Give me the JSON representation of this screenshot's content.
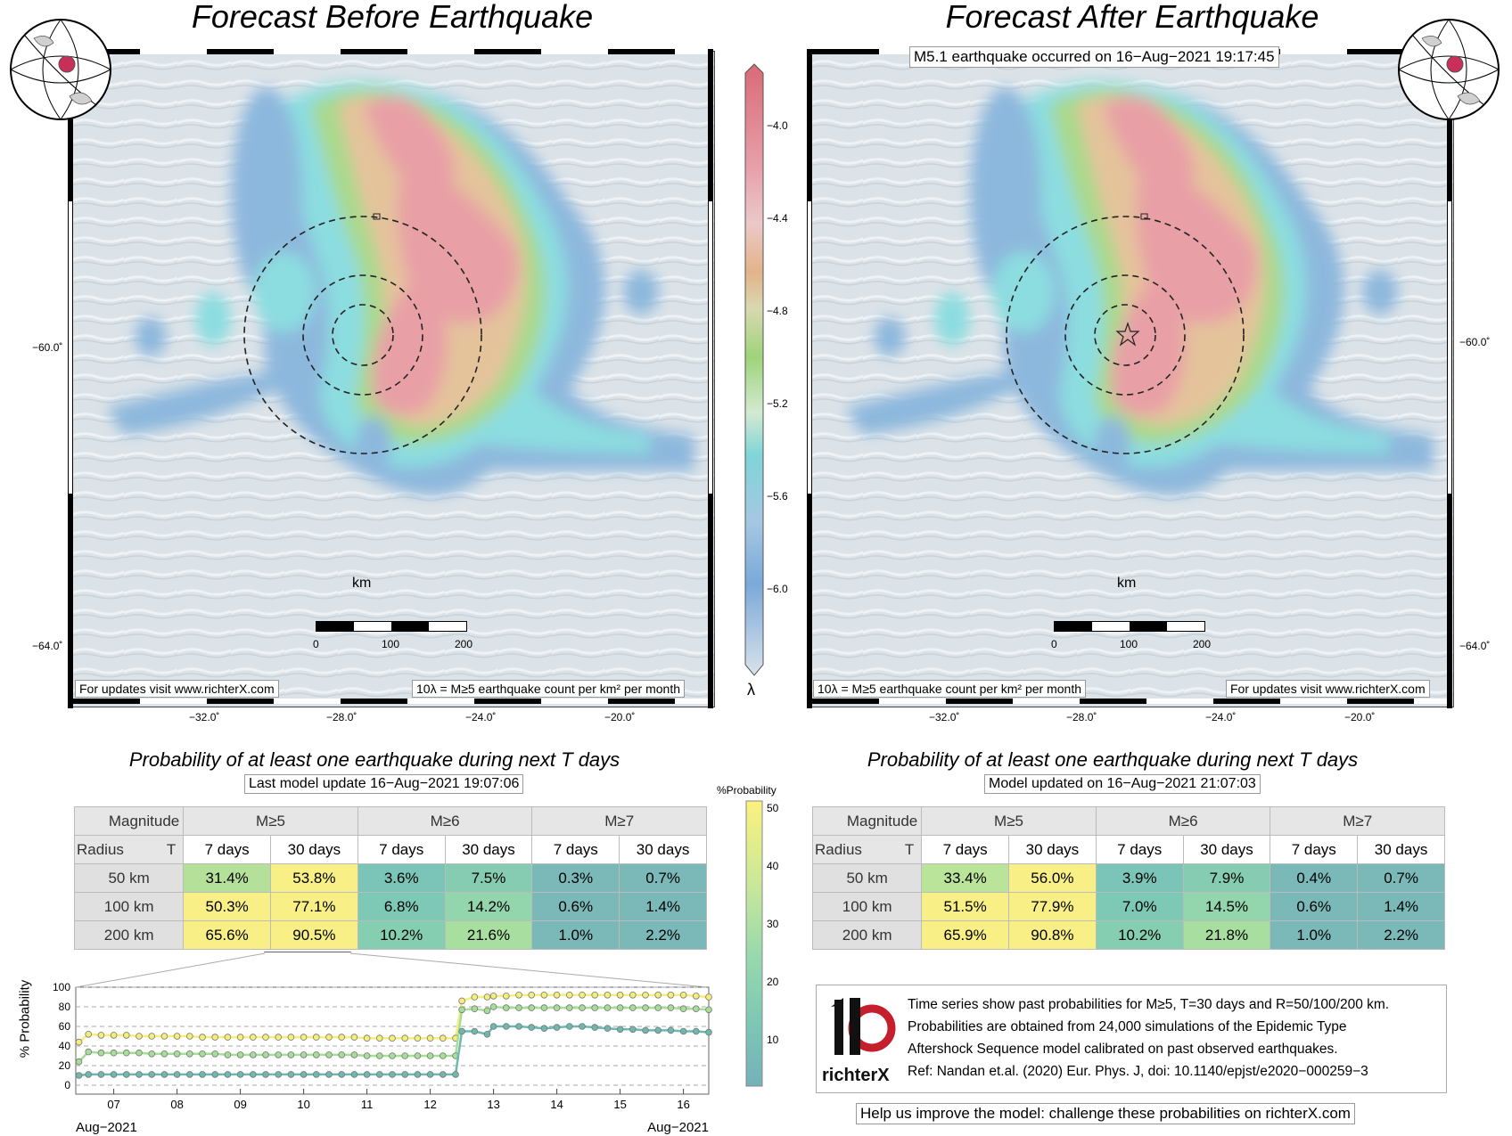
{
  "left_panel": {
    "title": "Forecast Before Earthquake",
    "footer_left": "For updates visit www.richterX.com",
    "footer_right": "10λ = M≥5 earthquake count per km² per month",
    "scale": {
      "unit": "km",
      "ticks": [
        "0",
        "100",
        "200"
      ]
    },
    "lat_ticks": [
      "−60.0˚",
      "−64.0˚"
    ],
    "lon_ticks": [
      "−32.0˚",
      "−28.0˚",
      "−24.0˚",
      "−20.0˚"
    ]
  },
  "right_panel": {
    "title": "Forecast After Earthquake",
    "event_note": "M5.1 earthquake occurred on 16−Aug−2021 19:17:45",
    "footer_left": "10λ = M≥5 earthquake count per km² per month",
    "footer_right": "For updates visit www.richterX.com",
    "scale": {
      "unit": "km",
      "ticks": [
        "0",
        "100",
        "200"
      ]
    },
    "lat_ticks": [
      "−60.0˚",
      "−64.0˚"
    ],
    "lon_ticks": [
      "−32.0˚",
      "−28.0˚",
      "−24.0˚",
      "−20.0˚"
    ]
  },
  "colorbar_lambda": {
    "label": "λ",
    "ticks": [
      "−4.0",
      "−4.4",
      "−4.8",
      "−5.2",
      "−5.6",
      "−6.0"
    ]
  },
  "colorbar_prob": {
    "label": "%Probability",
    "ticks": [
      "50",
      "40",
      "30",
      "20",
      "10"
    ]
  },
  "left_table": {
    "title": "Probability of at least one earthquake during next T days",
    "update_note": "Last model update 16−Aug−2021 19:07:06",
    "magnitude_label": "Magnitude",
    "radius_label": "Radius",
    "t_label": "T",
    "magnitudes": [
      "M≥5",
      "M≥6",
      "M≥7"
    ],
    "periods": [
      "7 days",
      "30 days",
      "7 days",
      "30 days",
      "7 days",
      "30 days"
    ],
    "rows": [
      {
        "radius": "50 km",
        "values": [
          "31.4%",
          "53.8%",
          "3.6%",
          "7.5%",
          "0.3%",
          "0.7%"
        ],
        "colors": [
          "#b4e09a",
          "#f8ef86",
          "#7bc5b8",
          "#86ccb3",
          "#7ab9b8",
          "#7ab9b8"
        ]
      },
      {
        "radius": "100 km",
        "values": [
          "50.3%",
          "77.1%",
          "6.8%",
          "14.2%",
          "0.6%",
          "1.4%"
        ],
        "colors": [
          "#f8ef86",
          "#f8ef86",
          "#7ec9b6",
          "#93d6ad",
          "#7ab9b8",
          "#7ab9b8"
        ]
      },
      {
        "radius": "200 km",
        "values": [
          "65.6%",
          "90.5%",
          "10.2%",
          "21.6%",
          "1.0%",
          "2.2%"
        ],
        "colors": [
          "#f8ef86",
          "#f8ef86",
          "#86ceb2",
          "#a8dfa0",
          "#7ab9b8",
          "#7ab9b8"
        ]
      }
    ]
  },
  "right_table": {
    "title": "Probability of at least one earthquake during next T days",
    "update_note": "Model updated on 16−Aug−2021 21:07:03",
    "magnitude_label": "Magnitude",
    "radius_label": "Radius",
    "t_label": "T",
    "magnitudes": [
      "M≥5",
      "M≥6",
      "M≥7"
    ],
    "periods": [
      "7 days",
      "30 days",
      "7 days",
      "30 days",
      "7 days",
      "30 days"
    ],
    "rows": [
      {
        "radius": "50 km",
        "values": [
          "33.4%",
          "56.0%",
          "3.9%",
          "7.9%",
          "0.4%",
          "0.7%"
        ],
        "colors": [
          "#bae49a",
          "#f8ef86",
          "#7bc5b8",
          "#86ccb3",
          "#7ab9b8",
          "#7ab9b8"
        ]
      },
      {
        "radius": "100 km",
        "values": [
          "51.5%",
          "77.9%",
          "7.0%",
          "14.5%",
          "0.6%",
          "1.4%"
        ],
        "colors": [
          "#f8ef86",
          "#f8ef86",
          "#7ec9b6",
          "#93d6ad",
          "#7ab9b8",
          "#7ab9b8"
        ]
      },
      {
        "radius": "200 km",
        "values": [
          "65.9%",
          "90.8%",
          "10.2%",
          "21.8%",
          "1.0%",
          "2.2%"
        ],
        "colors": [
          "#f8ef86",
          "#f8ef86",
          "#86ceb2",
          "#a8dfa0",
          "#7ab9b8",
          "#7ab9b8"
        ]
      }
    ]
  },
  "info_box": {
    "logo_text": "richterX",
    "lines": [
      "Time series show past probabilities for M≥5, T=30 days and R=50/100/200 km.",
      "Probabilities are obtained from 24,000 simulations of the Epidemic Type",
      "Aftershock Sequence model calibrated on past observed earthquakes.",
      "Ref: Nandan et.al. (2020) Eur. Phys. J, doi: 10.1140/epjst/e2020−000259−3"
    ]
  },
  "help_note": "Help us improve the model: challenge these probabilities on richterX.com",
  "chart_data": {
    "type": "line",
    "ylabel": "% Probability",
    "ylim": [
      0,
      100
    ],
    "yticks": [
      "100",
      "80",
      "60",
      "40",
      "20",
      "0"
    ],
    "xticks": [
      "07",
      "08",
      "09",
      "10",
      "11",
      "12",
      "13",
      "14",
      "15",
      "16"
    ],
    "x_start_label": "Aug−2021",
    "x_end_label": "Aug−2021",
    "xlim": [
      6.4,
      16.4
    ],
    "x": [
      6.45,
      6.6,
      6.8,
      7.0,
      7.2,
      7.4,
      7.6,
      7.8,
      8.0,
      8.2,
      8.4,
      8.6,
      8.8,
      9.0,
      9.2,
      9.4,
      9.6,
      9.8,
      10.0,
      10.2,
      10.4,
      10.6,
      10.8,
      11.0,
      11.2,
      11.4,
      11.6,
      11.8,
      12.0,
      12.2,
      12.4,
      12.5,
      12.7,
      12.9,
      13.0,
      13.2,
      13.4,
      13.6,
      13.8,
      14.0,
      14.2,
      14.4,
      14.6,
      14.8,
      15.0,
      15.2,
      15.4,
      15.6,
      15.8,
      16.0,
      16.2,
      16.4
    ],
    "series": [
      {
        "color": "#f5ee7a",
        "values": [
          44,
          52,
          51,
          51,
          51,
          50,
          50,
          50,
          50,
          50,
          49,
          49,
          49,
          49,
          49,
          49,
          49,
          49,
          49,
          49,
          49,
          49,
          49,
          48,
          48,
          48,
          48,
          48,
          48,
          48,
          48,
          86,
          90,
          90,
          91,
          91,
          92,
          92,
          92,
          92,
          92,
          92,
          92,
          92,
          92,
          92,
          92,
          92,
          92,
          92,
          91,
          90
        ]
      },
      {
        "color": "#a6dd99",
        "values": [
          24,
          34,
          33,
          33,
          33,
          33,
          32,
          32,
          32,
          32,
          32,
          32,
          31,
          31,
          31,
          31,
          31,
          31,
          31,
          31,
          31,
          31,
          31,
          30,
          30,
          30,
          30,
          30,
          30,
          30,
          30,
          77,
          78,
          76,
          80,
          79,
          79,
          79,
          79,
          79,
          79,
          79,
          79,
          79,
          79,
          79,
          79,
          79,
          79,
          78,
          78,
          77
        ]
      },
      {
        "color": "#6fb8b0",
        "values": [
          10,
          11,
          11,
          11,
          11,
          11,
          11,
          11,
          11,
          11,
          11,
          11,
          11,
          11,
          11,
          11,
          11,
          11,
          11,
          11,
          11,
          11,
          11,
          11,
          11,
          11,
          11,
          11,
          11,
          11,
          11,
          55,
          55,
          52,
          60,
          60,
          60,
          59,
          58,
          59,
          60,
          60,
          59,
          58,
          57,
          57,
          56,
          56,
          56,
          55,
          55,
          54
        ]
      }
    ]
  }
}
